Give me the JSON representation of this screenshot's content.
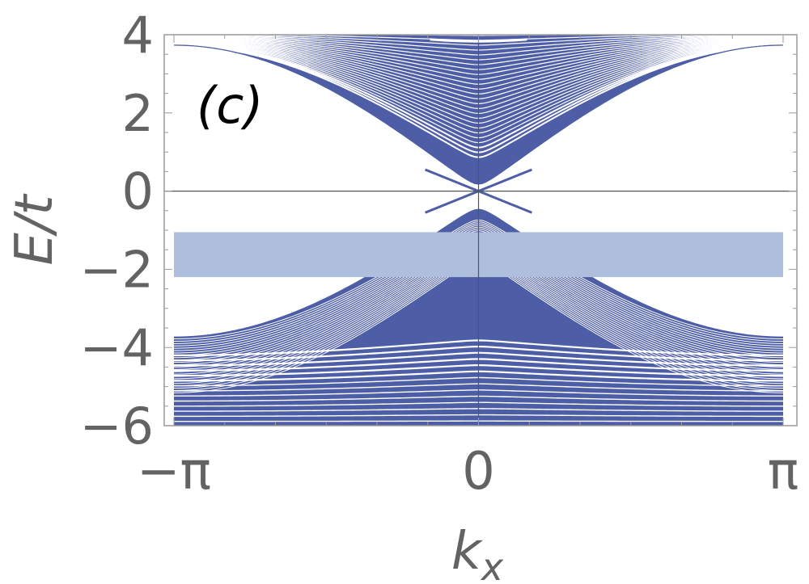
{
  "chart_data": {
    "type": "line",
    "panel_label": "(c)",
    "xlabel_base": "k",
    "xlabel_sub": "x",
    "ylabel": "E/t",
    "xlim": [
      -3.14159,
      3.14159
    ],
    "ylim": [
      -6,
      4
    ],
    "x_ticks": [
      {
        "value": -3.14159,
        "label": "−π"
      },
      {
        "value": 0,
        "label": "0"
      },
      {
        "value": 3.14159,
        "label": "π"
      }
    ],
    "y_ticks": [
      {
        "value": 4,
        "label": "4"
      },
      {
        "value": 2,
        "label": "2"
      },
      {
        "value": 0,
        "label": "0"
      },
      {
        "value": -2,
        "label": "−2"
      },
      {
        "value": -4,
        "label": "−4"
      },
      {
        "value": -6,
        "label": "−6"
      }
    ],
    "reference_lines": {
      "y_zero": true,
      "x_zero": true
    },
    "highlight_band": {
      "ymin": -2.2,
      "ymax": -1.05,
      "color": "#adbfdc"
    },
    "bands": {
      "color": "#4e5ea6",
      "upper": {
        "edge_at_zero": 0.0,
        "edge_at_pi": 3.72,
        "gap_edge_at_zero": 0.4,
        "top": 4
      },
      "lower": {
        "edge_at_zero": -0.3,
        "edge_at_pi": -3.72,
        "gap_edge_at_zero": -0.4,
        "bottom": -6
      }
    },
    "grid": false,
    "legend": "none"
  }
}
